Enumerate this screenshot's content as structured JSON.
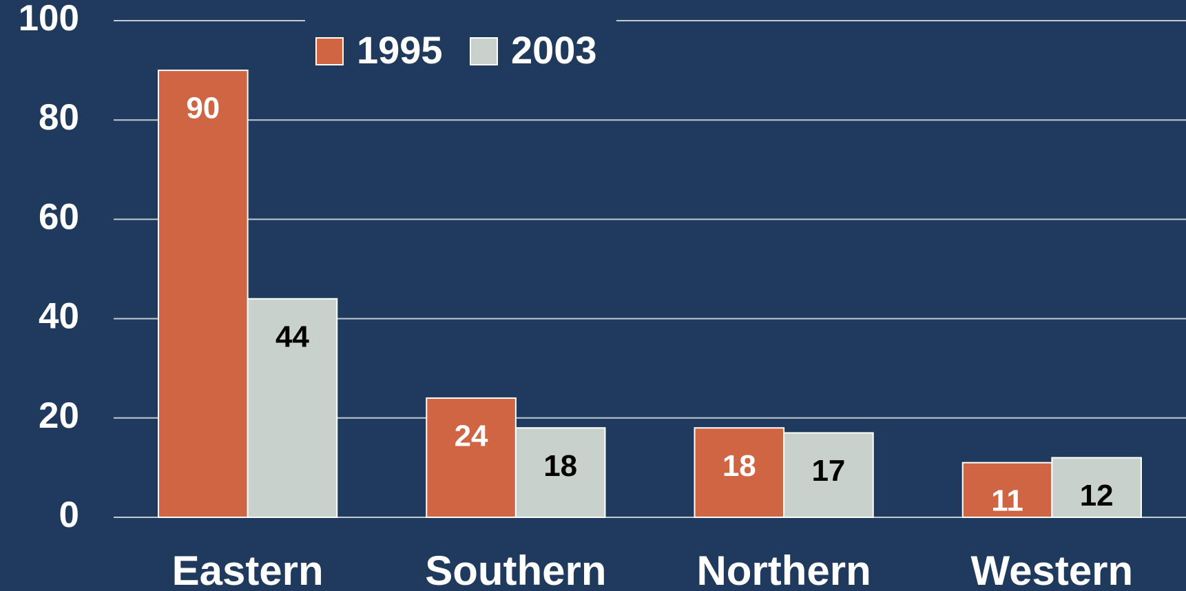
{
  "chart_data": {
    "type": "bar",
    "categories": [
      "Eastern",
      "Southern",
      "Northern",
      "Western"
    ],
    "series": [
      {
        "name": "1995",
        "color": "#cf6542",
        "label_color": "#ffffff",
        "values": [
          90,
          24,
          18,
          11
        ]
      },
      {
        "name": "2003",
        "color": "#c9d1cc",
        "label_color": "#000000",
        "values": [
          44,
          18,
          17,
          12
        ]
      }
    ],
    "ylim": [
      0,
      100
    ],
    "yticks": [
      0,
      20,
      40,
      60,
      80,
      100
    ],
    "grid": true,
    "legend": "top"
  }
}
